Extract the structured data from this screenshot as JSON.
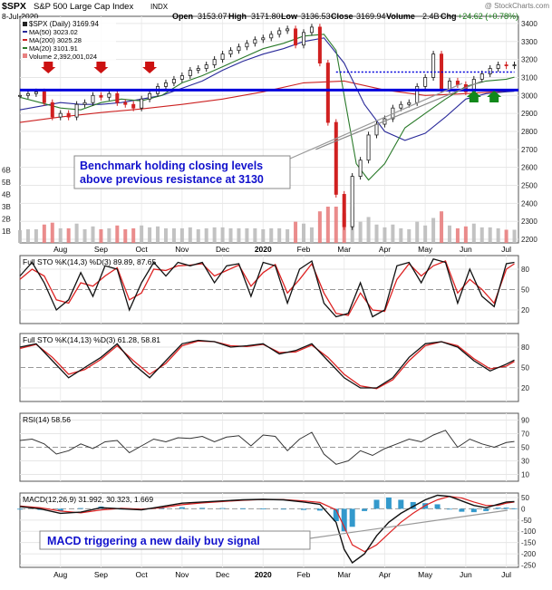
{
  "header": {
    "symbol": "$SPX",
    "name": "S&P 500 Large Cap Index",
    "exchange": "INDX",
    "watermark": "@ StockCharts.com",
    "date": "8-Jul-2020",
    "open_label": "Open",
    "open": "3153.07",
    "high_label": "High",
    "high": "3171.80",
    "low_label": "Low",
    "low": "3136.53",
    "close_label": "Close",
    "close": "3169.94",
    "volume_label": "Volume",
    "volume": "2.4B",
    "chg_label": "Chg",
    "chg": "+24.62 (+0.78%)"
  },
  "legend": {
    "price": "$SPX (Daily) 3169.94",
    "ma50": "MA(50) 3023.02",
    "ma200": "MA(200) 3025.28",
    "ma20": "MA(20) 3101.91",
    "volume": "Volume 2,392,001,024"
  },
  "annotations": {
    "price_note_line1": "Benchmark holding closing levels",
    "price_note_line2": "above previous resistance at 3130",
    "macd_note": "MACD triggering a new daily buy signal"
  },
  "colors": {
    "price_up": "#222222",
    "price_down": "#d02020",
    "ma50": "#2a2a9a",
    "ma200": "#cc2222",
    "ma20": "#2a7a2a",
    "volume": "#e88080",
    "volume_up": "#bbbbbb",
    "support": "#0000dd",
    "arrow_red": "#cc1111",
    "arrow_green": "#11881a",
    "sto_k": "#111111",
    "sto_d": "#dd2222",
    "macd_hist": "#3399cc",
    "note_text": "#1111cc",
    "rsi_fill": "#2d8a2d"
  },
  "chart_data": [
    {
      "type": "line",
      "title": "$SPX S&P 500 Large Cap Index",
      "x_labels": [
        "Aug",
        "Sep",
        "Oct",
        "Nov",
        "Dec",
        "2020",
        "Feb",
        "Mar",
        "Apr",
        "May",
        "Jun",
        "Jul"
      ],
      "x_months": [
        1,
        2,
        3,
        4,
        5,
        6,
        7,
        8,
        9,
        10,
        11,
        12
      ],
      "ylim": [
        2180,
        3440
      ],
      "yticks": [
        2200,
        2300,
        2400,
        2500,
        2600,
        2700,
        2800,
        2900,
        3000,
        3100,
        3200,
        3300,
        3400
      ],
      "volume_ticks": [
        "1B",
        "2B",
        "3B",
        "4B",
        "5B",
        "6B"
      ],
      "resistance_level": 3130,
      "support_level": 3030,
      "series": [
        {
          "name": "$SPX (Daily)",
          "x": [
            0.0,
            0.2,
            0.4,
            0.6,
            0.8,
            1.0,
            1.2,
            1.4,
            1.6,
            1.8,
            2.0,
            2.2,
            2.4,
            2.6,
            2.8,
            3.0,
            3.2,
            3.4,
            3.6,
            3.8,
            4.0,
            4.2,
            4.4,
            4.6,
            4.8,
            5.0,
            5.2,
            5.4,
            5.6,
            5.8,
            6.0,
            6.2,
            6.4,
            6.6,
            6.8,
            7.0,
            7.2,
            7.4,
            7.6,
            7.8,
            8.0,
            8.2,
            8.4,
            8.6,
            8.8,
            9.0,
            9.2,
            9.4,
            9.6,
            9.8,
            10.0,
            10.2,
            10.4,
            10.6,
            10.8,
            11.0,
            11.2,
            11.4,
            11.6,
            11.8,
            12.0,
            12.2
          ],
          "values": [
            3000,
            3010,
            3020,
            2960,
            2880,
            2900,
            2880,
            2950,
            2960,
            3000,
            2990,
            3010,
            2960,
            2950,
            2930,
            2980,
            3010,
            3050,
            3070,
            3090,
            3110,
            3140,
            3150,
            3170,
            3200,
            3230,
            3250,
            3270,
            3290,
            3310,
            3320,
            3340,
            3360,
            3370,
            3280,
            3350,
            3380,
            3180,
            2850,
            2450,
            2270,
            2550,
            2640,
            2780,
            2840,
            2870,
            2930,
            2950,
            2960,
            3050,
            3100,
            3230,
            3030,
            3080,
            3060,
            3020,
            3090,
            3120,
            3150,
            3170,
            3165,
            3170
          ]
        },
        {
          "name": "MA(50)",
          "x": [
            0.0,
            0.5,
            1.0,
            1.5,
            2.0,
            2.5,
            3.0,
            3.5,
            4.0,
            4.5,
            5.0,
            5.5,
            6.0,
            6.5,
            7.0,
            7.5,
            8.0,
            8.5,
            9.0,
            9.5,
            10.0,
            10.5,
            11.0,
            11.5,
            12.0,
            12.2
          ],
          "values": [
            2920,
            2940,
            2960,
            2950,
            2950,
            2960,
            2980,
            3000,
            3040,
            3080,
            3140,
            3190,
            3230,
            3260,
            3300,
            3320,
            3180,
            2950,
            2800,
            2750,
            2790,
            2880,
            2980,
            3010,
            3020,
            3023
          ]
        },
        {
          "name": "MA(200)",
          "x": [
            0.0,
            1.0,
            2.0,
            3.0,
            4.0,
            5.0,
            6.0,
            7.0,
            8.0,
            9.0,
            10.0,
            11.0,
            12.0,
            12.2
          ],
          "values": [
            2850,
            2880,
            2905,
            2925,
            2950,
            2980,
            3020,
            3070,
            3080,
            3030,
            3000,
            3010,
            3024,
            3025
          ]
        },
        {
          "name": "MA(20)",
          "x": [
            0.0,
            0.5,
            1.0,
            1.5,
            2.0,
            2.5,
            3.0,
            3.5,
            4.0,
            4.5,
            5.0,
            5.5,
            6.0,
            6.5,
            7.0,
            7.5,
            7.8,
            8.0,
            8.3,
            8.6,
            9.0,
            9.5,
            10.0,
            10.5,
            11.0,
            11.5,
            12.0,
            12.2
          ],
          "values": [
            2990,
            2960,
            2930,
            2920,
            2960,
            2980,
            2970,
            3000,
            3070,
            3110,
            3160,
            3210,
            3260,
            3290,
            3330,
            3340,
            3250,
            3000,
            2620,
            2530,
            2620,
            2820,
            2900,
            2980,
            3050,
            3080,
            3090,
            3102
          ]
        }
      ]
    },
    {
      "type": "line",
      "title": "Full STO %K(14,3) %D(3) 89.89, 87.65",
      "ylim": [
        0,
        100
      ],
      "yticks": [
        20,
        50,
        80
      ],
      "series": [
        {
          "name": "%K(14,3)",
          "x": [
            0.0,
            0.3,
            0.6,
            0.9,
            1.2,
            1.5,
            1.8,
            2.1,
            2.4,
            2.7,
            3.0,
            3.3,
            3.6,
            3.9,
            4.2,
            4.5,
            4.8,
            5.1,
            5.4,
            5.7,
            6.0,
            6.3,
            6.6,
            6.9,
            7.2,
            7.5,
            7.8,
            8.1,
            8.4,
            8.7,
            9.0,
            9.3,
            9.6,
            9.9,
            10.2,
            10.5,
            10.8,
            11.1,
            11.4,
            11.7,
            12.0,
            12.2
          ],
          "values": [
            70,
            90,
            60,
            20,
            35,
            75,
            40,
            85,
            80,
            20,
            60,
            90,
            70,
            90,
            85,
            90,
            60,
            85,
            88,
            40,
            90,
            85,
            30,
            80,
            92,
            30,
            10,
            15,
            60,
            10,
            20,
            85,
            90,
            60,
            95,
            90,
            30,
            80,
            40,
            25,
            88,
            90
          ]
        },
        {
          "name": "%D(3)",
          "x": [
            0.0,
            0.3,
            0.6,
            0.9,
            1.2,
            1.5,
            1.8,
            2.1,
            2.4,
            2.7,
            3.0,
            3.3,
            3.6,
            3.9,
            4.2,
            4.5,
            4.8,
            5.1,
            5.4,
            5.7,
            6.0,
            6.3,
            6.6,
            6.9,
            7.2,
            7.5,
            7.8,
            8.1,
            8.4,
            8.7,
            9.0,
            9.3,
            9.6,
            9.9,
            10.2,
            10.5,
            10.8,
            11.1,
            11.4,
            11.7,
            12.0,
            12.2
          ],
          "values": [
            65,
            80,
            70,
            35,
            30,
            60,
            55,
            70,
            82,
            35,
            45,
            80,
            78,
            85,
            86,
            88,
            70,
            78,
            86,
            55,
            75,
            87,
            45,
            65,
            88,
            45,
            15,
            12,
            45,
            20,
            18,
            65,
            88,
            70,
            85,
            92,
            45,
            65,
            50,
            30,
            80,
            88
          ]
        }
      ]
    },
    {
      "type": "line",
      "title": "Full STO %K(14,13) %D(3) 61.28, 58.81",
      "ylim": [
        0,
        100
      ],
      "yticks": [
        20,
        50,
        80
      ],
      "series": [
        {
          "name": "%K(14,13)",
          "x": [
            0.0,
            0.4,
            0.8,
            1.2,
            1.6,
            2.0,
            2.4,
            2.8,
            3.2,
            3.6,
            4.0,
            4.4,
            4.8,
            5.2,
            5.6,
            6.0,
            6.4,
            6.8,
            7.2,
            7.6,
            8.0,
            8.4,
            8.8,
            9.2,
            9.6,
            10.0,
            10.4,
            10.8,
            11.2,
            11.6,
            12.0,
            12.2
          ],
          "values": [
            80,
            85,
            60,
            35,
            50,
            65,
            85,
            55,
            35,
            60,
            85,
            90,
            88,
            80,
            82,
            85,
            70,
            75,
            85,
            60,
            35,
            20,
            20,
            35,
            65,
            85,
            88,
            80,
            60,
            45,
            55,
            61
          ]
        },
        {
          "name": "%D(3)",
          "x": [
            0.0,
            0.4,
            0.8,
            1.2,
            1.6,
            2.0,
            2.4,
            2.8,
            3.2,
            3.6,
            4.0,
            4.4,
            4.8,
            5.2,
            5.6,
            6.0,
            6.4,
            6.8,
            7.2,
            7.6,
            8.0,
            8.4,
            8.8,
            9.2,
            9.6,
            10.0,
            10.4,
            10.8,
            11.2,
            11.6,
            12.0,
            12.2
          ],
          "values": [
            78,
            84,
            65,
            40,
            47,
            62,
            82,
            60,
            40,
            56,
            82,
            89,
            88,
            82,
            81,
            84,
            72,
            73,
            83,
            65,
            40,
            23,
            19,
            32,
            60,
            82,
            88,
            82,
            63,
            48,
            52,
            59
          ]
        }
      ]
    },
    {
      "type": "line",
      "title": "RSI(14) 58.56",
      "ylim": [
        0,
        100
      ],
      "yticks": [
        10,
        30,
        50,
        70,
        90
      ],
      "series": [
        {
          "name": "RSI(14)",
          "x": [
            0.0,
            0.3,
            0.6,
            0.9,
            1.2,
            1.5,
            1.8,
            2.1,
            2.4,
            2.7,
            3.0,
            3.3,
            3.6,
            3.9,
            4.2,
            4.5,
            4.8,
            5.1,
            5.4,
            5.7,
            6.0,
            6.3,
            6.6,
            6.9,
            7.2,
            7.5,
            7.8,
            8.1,
            8.4,
            8.7,
            9.0,
            9.3,
            9.6,
            9.9,
            10.2,
            10.5,
            10.8,
            11.1,
            11.4,
            11.7,
            12.0,
            12.2
          ],
          "values": [
            60,
            62,
            55,
            40,
            45,
            55,
            48,
            58,
            60,
            42,
            52,
            62,
            58,
            64,
            63,
            66,
            58,
            65,
            67,
            52,
            68,
            66,
            45,
            62,
            72,
            40,
            25,
            30,
            45,
            38,
            48,
            55,
            62,
            58,
            68,
            75,
            50,
            62,
            55,
            50,
            57,
            58.56
          ]
        }
      ]
    },
    {
      "type": "line",
      "title": "MACD(12,26,9) 31.992, 30.323, 1.669",
      "ylim": [
        -260,
        70
      ],
      "yticks": [
        50,
        0,
        -50,
        -100,
        -150,
        -200,
        -250
      ],
      "series": [
        {
          "name": "MACD",
          "x": [
            0.0,
            0.5,
            1.0,
            1.5,
            2.0,
            2.5,
            3.0,
            3.5,
            4.0,
            4.5,
            5.0,
            5.5,
            6.0,
            6.5,
            7.0,
            7.4,
            7.8,
            8.0,
            8.2,
            8.5,
            8.8,
            9.1,
            9.4,
            9.7,
            10.0,
            10.3,
            10.6,
            10.9,
            11.2,
            11.5,
            11.8,
            12.0,
            12.2
          ],
          "values": [
            10,
            0,
            -20,
            -15,
            5,
            0,
            -5,
            10,
            25,
            30,
            35,
            40,
            42,
            40,
            30,
            20,
            -60,
            -180,
            -240,
            -200,
            -120,
            -60,
            -20,
            10,
            40,
            60,
            55,
            35,
            15,
            5,
            20,
            30,
            32
          ]
        },
        {
          "name": "Signal",
          "x": [
            0.0,
            0.5,
            1.0,
            1.5,
            2.0,
            2.5,
            3.0,
            3.5,
            4.0,
            4.5,
            5.0,
            5.5,
            6.0,
            6.5,
            7.0,
            7.4,
            7.8,
            8.0,
            8.2,
            8.5,
            8.8,
            9.1,
            9.4,
            9.7,
            10.0,
            10.3,
            10.6,
            10.9,
            11.2,
            11.5,
            11.8,
            12.0,
            12.2
          ],
          "values": [
            12,
            5,
            -10,
            -18,
            -5,
            2,
            -2,
            5,
            18,
            26,
            32,
            38,
            41,
            41,
            35,
            28,
            -5,
            -80,
            -160,
            -190,
            -160,
            -110,
            -60,
            -20,
            15,
            40,
            55,
            48,
            30,
            15,
            15,
            25,
            30
          ]
        },
        {
          "name": "Histogram",
          "x": [
            0.0,
            0.5,
            1.0,
            1.5,
            2.0,
            2.5,
            3.0,
            3.5,
            4.0,
            4.5,
            5.0,
            5.5,
            6.0,
            6.5,
            7.0,
            7.4,
            7.8,
            8.0,
            8.2,
            8.5,
            8.8,
            9.1,
            9.4,
            9.7,
            10.0,
            10.3,
            10.6,
            10.9,
            11.2,
            11.5,
            11.8,
            12.0,
            12.2
          ],
          "values": [
            -2,
            -5,
            -10,
            3,
            10,
            -2,
            -3,
            5,
            7,
            4,
            3,
            2,
            1,
            -1,
            -5,
            -8,
            -55,
            -100,
            -80,
            -10,
            40,
            50,
            40,
            30,
            25,
            20,
            0,
            -13,
            -15,
            -10,
            5,
            5,
            2
          ]
        }
      ]
    }
  ]
}
